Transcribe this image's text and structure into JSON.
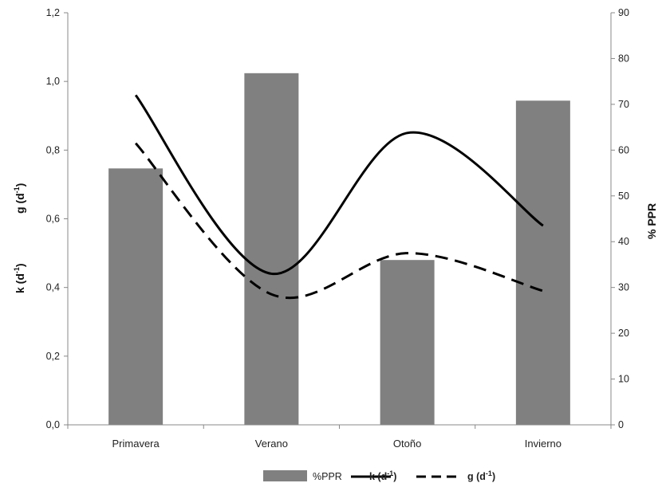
{
  "chart_data": {
    "type": "bar+line",
    "categories": [
      "Primavera",
      "Verano",
      "Otoño",
      "Invierno"
    ],
    "series": [
      {
        "name": "%PPR",
        "kind": "bar",
        "axis": "right",
        "values": [
          56,
          76.8,
          36,
          70.8
        ],
        "color": "#808080"
      },
      {
        "name": "k (d-1)",
        "kind": "line",
        "style": "solid",
        "axis": "left",
        "values": [
          0.96,
          0.44,
          0.85,
          0.58
        ],
        "color": "#000000"
      },
      {
        "name": "g (d-1)",
        "kind": "line",
        "style": "dashed",
        "axis": "left",
        "values": [
          0.82,
          0.38,
          0.5,
          0.39
        ],
        "color": "#000000"
      }
    ],
    "left_axis": {
      "ylim": [
        0,
        1.2
      ],
      "ticks": [
        "0,0",
        "0,2",
        "0,4",
        "0,6",
        "0,8",
        "1,0",
        "1,2"
      ],
      "label_k": {
        "base": "k (d",
        "sup": "-1",
        "end": ")"
      },
      "label_g": {
        "base": "g (d",
        "sup": "-1",
        "end": ")"
      }
    },
    "right_axis": {
      "ylim": [
        0,
        90
      ],
      "ticks": [
        "0",
        "10",
        "20",
        "30",
        "40",
        "50",
        "60",
        "70",
        "80",
        "90"
      ],
      "label": "% PPR"
    },
    "legend": {
      "position": "bottom",
      "items": [
        {
          "base": "%PPR",
          "sup": "",
          "end": ""
        },
        {
          "base": "k (d",
          "sup": "-1",
          "end": ")"
        },
        {
          "base": "g (d",
          "sup": "-1",
          "end": ")"
        }
      ]
    },
    "grid": false
  }
}
